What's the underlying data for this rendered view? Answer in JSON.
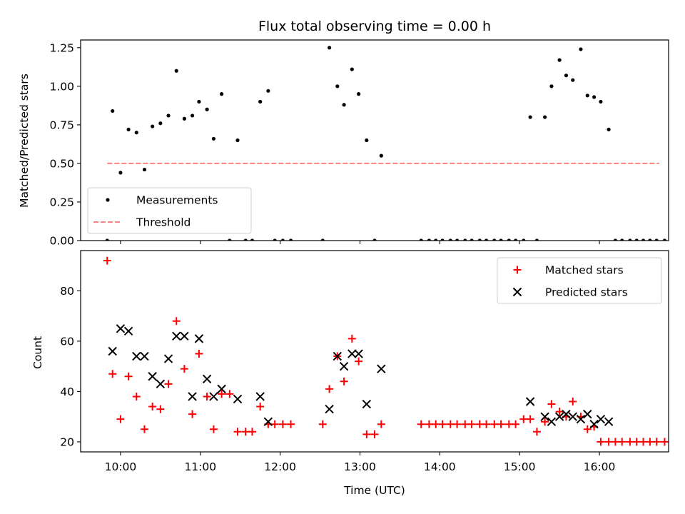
{
  "colors": {
    "measurement": "#000000",
    "threshold": "#ff8080",
    "matched": "#ff0000",
    "predicted": "#000000"
  },
  "chart_data": [
    {
      "type": "scatter",
      "title": "Flux total observing time = 0.00 h",
      "xlabel": "",
      "ylabel": "Matched/Predicted stars",
      "ylim": [
        0,
        1.3
      ],
      "xlim": [
        "09:30",
        "16:52"
      ],
      "yticks": [
        "0.00",
        "0.25",
        "0.50",
        "0.75",
        "1.00",
        "1.25"
      ],
      "legend": {
        "position": "lower-left",
        "entries": [
          "Measurements",
          "Threshold"
        ]
      },
      "grid": false,
      "series": [
        {
          "name": "Measurements",
          "marker": "dot",
          "points": [
            [
              "09:50",
              0.0
            ],
            [
              "09:54",
              0.84
            ],
            [
              "10:00",
              0.44
            ],
            [
              "10:06",
              0.72
            ],
            [
              "10:12",
              0.7
            ],
            [
              "10:18",
              0.46
            ],
            [
              "10:24",
              0.74
            ],
            [
              "10:30",
              0.76
            ],
            [
              "10:36",
              0.81
            ],
            [
              "10:42",
              1.1
            ],
            [
              "10:48",
              0.79
            ],
            [
              "10:54",
              0.81
            ],
            [
              "10:59",
              0.9
            ],
            [
              "11:05",
              0.85
            ],
            [
              "11:10",
              0.66
            ],
            [
              "11:16",
              0.95
            ],
            [
              "11:22",
              0.0
            ],
            [
              "11:28",
              0.65
            ],
            [
              "11:34",
              0.0
            ],
            [
              "11:39",
              0.0
            ],
            [
              "11:45",
              0.9
            ],
            [
              "11:51",
              0.97
            ],
            [
              "11:56",
              0.0
            ],
            [
              "12:02",
              0.0
            ],
            [
              "12:08",
              0.0
            ],
            [
              "12:32",
              0.0
            ],
            [
              "12:37",
              1.25
            ],
            [
              "12:43",
              1.0
            ],
            [
              "12:48",
              0.88
            ],
            [
              "12:54",
              1.11
            ],
            [
              "12:59",
              0.95
            ],
            [
              "13:05",
              0.65
            ],
            [
              "13:11",
              0.0
            ],
            [
              "13:16",
              0.55
            ],
            [
              "13:46",
              0.0
            ],
            [
              "13:52",
              0.0
            ],
            [
              "13:57",
              0.0
            ],
            [
              "14:02",
              0.0
            ],
            [
              "14:08",
              0.0
            ],
            [
              "14:13",
              0.0
            ],
            [
              "14:19",
              0.0
            ],
            [
              "14:24",
              0.0
            ],
            [
              "14:30",
              0.0
            ],
            [
              "14:35",
              0.0
            ],
            [
              "14:41",
              0.0
            ],
            [
              "14:46",
              0.0
            ],
            [
              "14:52",
              0.0
            ],
            [
              "14:57",
              0.0
            ],
            [
              "15:03",
              0.0
            ],
            [
              "15:08",
              0.8
            ],
            [
              "15:13",
              0.0
            ],
            [
              "15:19",
              0.8
            ],
            [
              "15:24",
              1.0
            ],
            [
              "15:30",
              1.17
            ],
            [
              "15:35",
              1.07
            ],
            [
              "15:40",
              1.04
            ],
            [
              "15:46",
              1.24
            ],
            [
              "15:51",
              0.94
            ],
            [
              "15:56",
              0.93
            ],
            [
              "16:01",
              0.9
            ],
            [
              "16:07",
              0.72
            ],
            [
              "16:12",
              0.0
            ],
            [
              "16:17",
              0.0
            ],
            [
              "16:23",
              0.0
            ],
            [
              "16:28",
              0.0
            ],
            [
              "16:33",
              0.0
            ],
            [
              "16:38",
              0.0
            ],
            [
              "16:43",
              0.0
            ],
            [
              "16:49",
              0.0
            ]
          ]
        },
        {
          "name": "Threshold",
          "marker": "dashed-line",
          "points": [
            [
              "09:50",
              0.5
            ],
            [
              "16:45",
              0.5
            ]
          ]
        }
      ]
    },
    {
      "type": "scatter",
      "title": "",
      "xlabel": "Time (UTC)",
      "ylabel": "Count",
      "ylim": [
        16,
        96
      ],
      "xlim": [
        "09:30",
        "16:52"
      ],
      "yticks": [
        "20",
        "40",
        "60",
        "80"
      ],
      "xticks": [
        "10:00",
        "11:00",
        "12:00",
        "13:00",
        "14:00",
        "15:00",
        "16:00"
      ],
      "legend": {
        "position": "top-right",
        "entries": [
          "Matched stars",
          "Predicted stars"
        ]
      },
      "grid": false,
      "series": [
        {
          "name": "Matched stars",
          "marker": "plus",
          "points": [
            [
              "09:50",
              92
            ],
            [
              "09:54",
              47
            ],
            [
              "10:00",
              29
            ],
            [
              "10:06",
              46
            ],
            [
              "10:12",
              38
            ],
            [
              "10:18",
              25
            ],
            [
              "10:24",
              34
            ],
            [
              "10:30",
              33
            ],
            [
              "10:36",
              43
            ],
            [
              "10:42",
              68
            ],
            [
              "10:48",
              49
            ],
            [
              "10:54",
              31
            ],
            [
              "10:59",
              55
            ],
            [
              "11:05",
              38
            ],
            [
              "11:10",
              25
            ],
            [
              "11:16",
              39
            ],
            [
              "11:22",
              39
            ],
            [
              "11:28",
              24
            ],
            [
              "11:34",
              24
            ],
            [
              "11:39",
              24
            ],
            [
              "11:45",
              34
            ],
            [
              "11:51",
              27
            ],
            [
              "11:56",
              27
            ],
            [
              "12:02",
              27
            ],
            [
              "12:08",
              27
            ],
            [
              "12:32",
              27
            ],
            [
              "12:37",
              41
            ],
            [
              "12:43",
              54
            ],
            [
              "12:48",
              44
            ],
            [
              "12:54",
              61
            ],
            [
              "12:59",
              52
            ],
            [
              "13:05",
              23
            ],
            [
              "13:11",
              23
            ],
            [
              "13:16",
              27
            ],
            [
              "13:46",
              27
            ],
            [
              "13:52",
              27
            ],
            [
              "13:57",
              27
            ],
            [
              "14:02",
              27
            ],
            [
              "14:08",
              27
            ],
            [
              "14:13",
              27
            ],
            [
              "14:19",
              27
            ],
            [
              "14:24",
              27
            ],
            [
              "14:30",
              27
            ],
            [
              "14:35",
              27
            ],
            [
              "14:41",
              27
            ],
            [
              "14:46",
              27
            ],
            [
              "14:52",
              27
            ],
            [
              "14:57",
              27
            ],
            [
              "15:03",
              29
            ],
            [
              "15:08",
              29
            ],
            [
              "15:13",
              24
            ],
            [
              "15:19",
              28
            ],
            [
              "15:24",
              35
            ],
            [
              "15:30",
              32
            ],
            [
              "15:35",
              30
            ],
            [
              "15:40",
              36
            ],
            [
              "15:46",
              30
            ],
            [
              "15:51",
              25
            ],
            [
              "15:56",
              26
            ],
            [
              "16:01",
              20
            ],
            [
              "16:07",
              20
            ],
            [
              "16:12",
              20
            ],
            [
              "16:17",
              20
            ],
            [
              "16:23",
              20
            ],
            [
              "16:28",
              20
            ],
            [
              "16:33",
              20
            ],
            [
              "16:38",
              20
            ],
            [
              "16:43",
              20
            ],
            [
              "16:49",
              20
            ]
          ]
        },
        {
          "name": "Predicted stars",
          "marker": "x",
          "points": [
            [
              "09:54",
              56
            ],
            [
              "10:00",
              65
            ],
            [
              "10:06",
              64
            ],
            [
              "10:12",
              54
            ],
            [
              "10:18",
              54
            ],
            [
              "10:24",
              46
            ],
            [
              "10:30",
              43
            ],
            [
              "10:36",
              53
            ],
            [
              "10:42",
              62
            ],
            [
              "10:48",
              62
            ],
            [
              "10:54",
              38
            ],
            [
              "10:59",
              61
            ],
            [
              "11:05",
              45
            ],
            [
              "11:10",
              38
            ],
            [
              "11:16",
              41
            ],
            [
              "11:28",
              37
            ],
            [
              "11:45",
              38
            ],
            [
              "11:51",
              28
            ],
            [
              "12:37",
              33
            ],
            [
              "12:43",
              54
            ],
            [
              "12:48",
              50
            ],
            [
              "12:54",
              55
            ],
            [
              "12:59",
              55
            ],
            [
              "13:05",
              35
            ],
            [
              "13:16",
              49
            ],
            [
              "15:08",
              36
            ],
            [
              "15:19",
              30
            ],
            [
              "15:24",
              28
            ],
            [
              "15:30",
              30
            ],
            [
              "15:35",
              31
            ],
            [
              "15:40",
              30
            ],
            [
              "15:46",
              29
            ],
            [
              "15:51",
              31
            ],
            [
              "15:56",
              27
            ],
            [
              "16:01",
              29
            ],
            [
              "16:07",
              28
            ]
          ]
        }
      ]
    }
  ]
}
